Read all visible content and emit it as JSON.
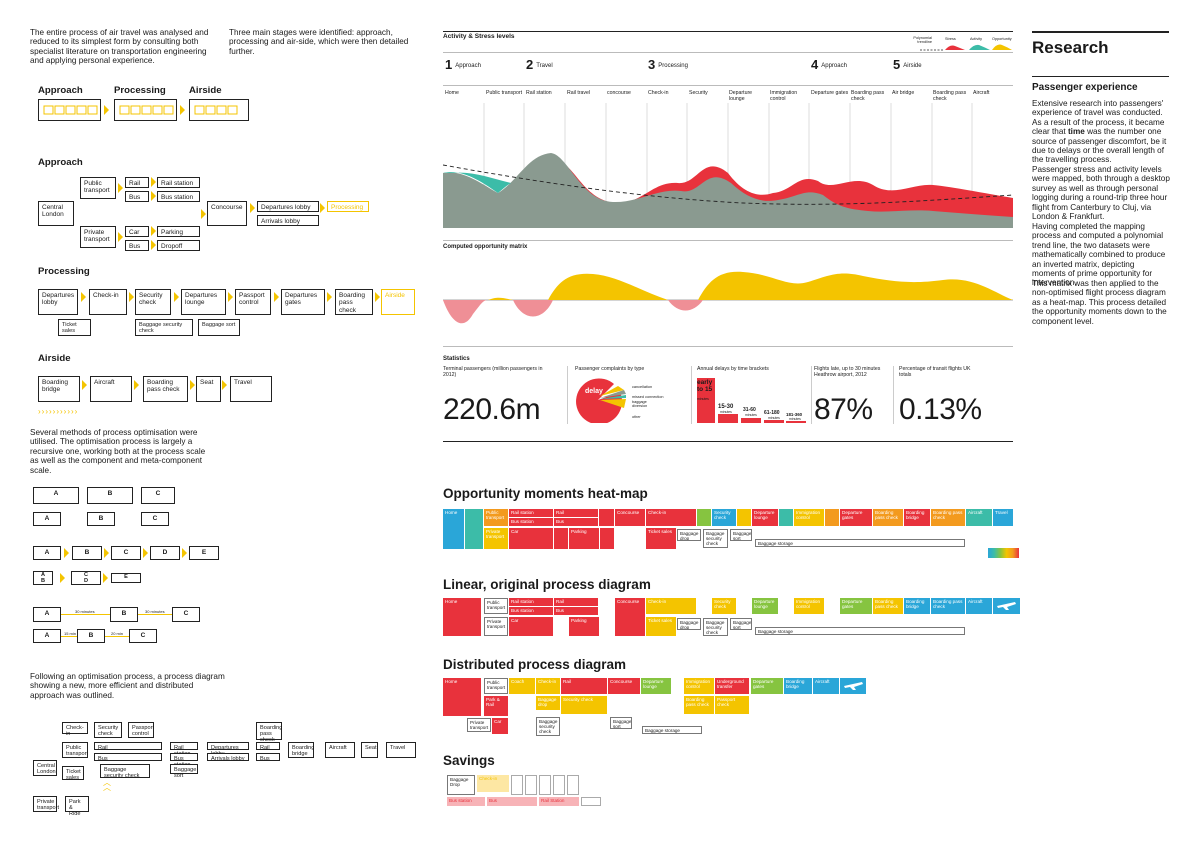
{
  "colors": {
    "yellow": "#f4c400",
    "red": "#e8323c",
    "teal": "#3cbca8",
    "grey": "#8a9a90",
    "blue": "#2aa6d8",
    "green": "#86c440",
    "orange": "#f39a1e"
  },
  "intro": {
    "p1": "The entire process of air travel was analysed and reduced to its simplest form by consulting both specialist literature on transportation engineering and applying personal experience.",
    "p2": "Three main stages were identified: approach, processing and air-side, which were then detailed further."
  },
  "stages": [
    "Approach",
    "Processing",
    "Airside"
  ],
  "approach": {
    "title": "Approach",
    "central_london": "Central London",
    "public_transport": "Public transport",
    "private_transport": "Private transport",
    "rail": "Rail",
    "bus": "Bus",
    "car": "Car",
    "parking": "Parking",
    "rail_station": "Rail station",
    "bus_station": "Bus station",
    "dropoff": "Dropoff",
    "concourse": "Concourse",
    "departures_lobby": "Departures lobby",
    "arrivals_lobby": "Arrivals lobby",
    "processing": "Processing"
  },
  "processing": {
    "title": "Processing",
    "items": [
      "Departures lobby",
      "Check-in",
      "Security check",
      "Departures lounge",
      "Passport control",
      "Departures gates",
      "Boarding pass check"
    ],
    "airside": "Airside",
    "ticket_sales": "Ticket sales",
    "baggage_security": "Baggage security check",
    "baggage_sort": "Baggage sort"
  },
  "airside": {
    "title": "Airside",
    "items": [
      "Boarding bridge",
      "Aircraft",
      "Boarding pass check",
      "Seat",
      "Travel"
    ]
  },
  "optimisation": {
    "text": "Several methods of process optimisation were utilised. The optimisation process is largely a recursive one, working both at the process scale as well as the component and meta-component scale.",
    "abc": [
      "A",
      "B",
      "C",
      "D",
      "E"
    ],
    "time1": "30 minutes",
    "time2": "30 minutes",
    "time3": "15 min",
    "time4": "20 min"
  },
  "distributed_intro": "Following an optimisation process, a process diagram showing a new, more efficient and distributed approach was outlined.",
  "dist_diagram": {
    "checkin": "Check-in",
    "security": "Security check",
    "passport": "Passport control",
    "boarding_pass": "Boarding pass check",
    "central_london": "Central London",
    "public_transport": "Public transport",
    "rail": "Rail",
    "bus": "Bus",
    "rail_station": "Rail station",
    "bus_station": "Bus station",
    "departures_lobby": "Departures lobby",
    "arrivals_lobby": "Arrivals lobby",
    "rail2": "Rail",
    "bus2": "Bus",
    "boarding_bridge": "Boarding bridge",
    "aircraft": "Aircraft",
    "seat": "Seat",
    "travel": "Travel",
    "ticket_sales": "Ticket sales",
    "baggage_security": "Baggage security check",
    "baggage_sort": "Baggage sort",
    "private_transport": "Private transport",
    "park_ride": "Park & Ride"
  },
  "activity": {
    "title": "Activity & Stress levels",
    "legend": [
      "Polynomial trendline",
      "Stress",
      "Activity",
      "Opportunity"
    ],
    "stages": [
      {
        "n": "1",
        "label": "Approach"
      },
      {
        "n": "2",
        "label": "Travel"
      },
      {
        "n": "3",
        "label": "Processing"
      },
      {
        "n": "4",
        "label": "Approach"
      },
      {
        "n": "5",
        "label": "Airside"
      }
    ],
    "columns": [
      "Home",
      "Public transport",
      "Rail station",
      "Rail travel",
      "concourse",
      "Check-in",
      "Security",
      "Departure lounge",
      "Immigration control",
      "Departure gates",
      "Boarding pass check",
      "Air bridge",
      "Boarding pass check",
      "Aircraft"
    ]
  },
  "opportunity": {
    "title": "Computed opportunity matrix"
  },
  "statistics": {
    "title": "Statistics",
    "terminal_label": "Terminal passengers (million passengers in 2012)",
    "terminal_value": "220.6m",
    "complaints_label": "Passenger complaints by type",
    "complaints_big": "delay",
    "complaints": [
      "cancellation",
      "missed connection",
      "baggage",
      "diversion",
      "other"
    ],
    "delays_label": "Annual delays by time brackets",
    "delays": [
      {
        "label": "early to 15",
        "unit": "minutes"
      },
      {
        "label": "15-30",
        "unit": "minutes"
      },
      {
        "label": "31-60",
        "unit": "minutes"
      },
      {
        "label": "61-180",
        "unit": "minutes"
      },
      {
        "label": "181-360",
        "unit": "minutes"
      }
    ],
    "late_label": "Flights late, up to 30 minutes Heathrow airport, 2012",
    "late_value": "87%",
    "transit_label": "Percentage of transit flights UK totals",
    "transit_value": "0.13%"
  },
  "heatmap": {
    "title": "Opportunity moments heat-map",
    "top": [
      "Home",
      "Public transport",
      "Rail station",
      "Rail",
      "Concourse",
      "Check-in",
      "Security check",
      "Departure lounge",
      "Immigration control",
      "Departure gates",
      "Boarding pass check",
      "Boarding bridge",
      "Boarding pass check",
      "Aircraft",
      "Travel"
    ],
    "bus_station": "Bus station",
    "bus": "Bus",
    "private": "Private transport",
    "car": "Car",
    "parking": "Parking",
    "ticket_sales": "Ticket sales",
    "baggage_drop": "Baggage drop",
    "baggage_security": "Baggage security check",
    "baggage_sort": "Baggage sort",
    "baggage_storage": "Baggage storage"
  },
  "linear": {
    "title": "Linear, original process diagram"
  },
  "distributed": {
    "title": "Distributed process diagram",
    "top": [
      "Home",
      "Public transport",
      "Coach",
      "Rail",
      "Concourse",
      "Departure lounge",
      "Immigration control",
      "Underground transfer",
      "Departure gates",
      "Boarding bridge",
      "Aircraft"
    ],
    "check_in": "Check-in",
    "baggage_drop": "Baggage drop",
    "security": "Security check",
    "boarding_pass": "Boarding pass check",
    "passport": "Passport check",
    "park_rail": "Park & Rail",
    "car": "Car",
    "private": "Private transport",
    "baggage_security": "Baggage security check",
    "baggage_sort": "Baggage sort",
    "baggage_storage": "Baggage storage"
  },
  "savings": {
    "title": "Savings",
    "baggage_drop": "Baggage Drop",
    "check_in": "Check-in",
    "bus_station": "Bus station",
    "bus": "Bus",
    "rail_station": "Rail Station"
  },
  "research": {
    "title": "Research",
    "subtitle": "Passenger experience",
    "p1_a": "Extensive research into passengers' experience of travel was conducted. As a result of the process, it became clear that ",
    "p1_bold": "time",
    "p1_b": " was the number one source of passenger discomfort, be it due to delays or the overall length of the travelling process.",
    "p2": "Passenger stress and activity levels were mapped, both through a desktop survey as well as through personal logging during a round-trip three hour flight from Canterbury to Cluj, via London & Frankfurt.",
    "p3": "Having completed the mapping process and computed a polynomial trend line, the two datasets were mathematically combined to produce an inverted matrix, depicting moments of prime opportunity for intervention.",
    "p4": "This matrix was then applied to the non-optimised flight process diagram as a heat-map. This process detailed the opportunity moments down to the component level."
  }
}
